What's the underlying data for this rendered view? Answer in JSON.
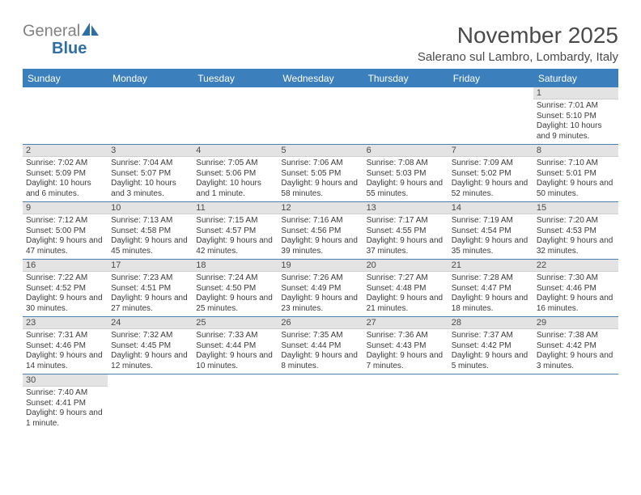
{
  "logo": {
    "part1": "General",
    "part2": "Blue"
  },
  "title": "November 2025",
  "subtitle": "Salerano sul Lambro, Lombardy, Italy",
  "colors": {
    "header_bg": "#3b7fbd",
    "header_text": "#ffffff",
    "daynum_bg": "#e3e3e3",
    "cell_border": "#4a7fb0",
    "text": "#3a3a3a",
    "logo_gray": "#808080",
    "logo_blue": "#2f6fa8"
  },
  "day_headers": [
    "Sunday",
    "Monday",
    "Tuesday",
    "Wednesday",
    "Thursday",
    "Friday",
    "Saturday"
  ],
  "leading_blanks": 6,
  "days": [
    {
      "n": 1,
      "sunrise": "7:01 AM",
      "sunset": "5:10 PM",
      "daylight": "10 hours and 9 minutes."
    },
    {
      "n": 2,
      "sunrise": "7:02 AM",
      "sunset": "5:09 PM",
      "daylight": "10 hours and 6 minutes."
    },
    {
      "n": 3,
      "sunrise": "7:04 AM",
      "sunset": "5:07 PM",
      "daylight": "10 hours and 3 minutes."
    },
    {
      "n": 4,
      "sunrise": "7:05 AM",
      "sunset": "5:06 PM",
      "daylight": "10 hours and 1 minute."
    },
    {
      "n": 5,
      "sunrise": "7:06 AM",
      "sunset": "5:05 PM",
      "daylight": "9 hours and 58 minutes."
    },
    {
      "n": 6,
      "sunrise": "7:08 AM",
      "sunset": "5:03 PM",
      "daylight": "9 hours and 55 minutes."
    },
    {
      "n": 7,
      "sunrise": "7:09 AM",
      "sunset": "5:02 PM",
      "daylight": "9 hours and 52 minutes."
    },
    {
      "n": 8,
      "sunrise": "7:10 AM",
      "sunset": "5:01 PM",
      "daylight": "9 hours and 50 minutes."
    },
    {
      "n": 9,
      "sunrise": "7:12 AM",
      "sunset": "5:00 PM",
      "daylight": "9 hours and 47 minutes."
    },
    {
      "n": 10,
      "sunrise": "7:13 AM",
      "sunset": "4:58 PM",
      "daylight": "9 hours and 45 minutes."
    },
    {
      "n": 11,
      "sunrise": "7:15 AM",
      "sunset": "4:57 PM",
      "daylight": "9 hours and 42 minutes."
    },
    {
      "n": 12,
      "sunrise": "7:16 AM",
      "sunset": "4:56 PM",
      "daylight": "9 hours and 39 minutes."
    },
    {
      "n": 13,
      "sunrise": "7:17 AM",
      "sunset": "4:55 PM",
      "daylight": "9 hours and 37 minutes."
    },
    {
      "n": 14,
      "sunrise": "7:19 AM",
      "sunset": "4:54 PM",
      "daylight": "9 hours and 35 minutes."
    },
    {
      "n": 15,
      "sunrise": "7:20 AM",
      "sunset": "4:53 PM",
      "daylight": "9 hours and 32 minutes."
    },
    {
      "n": 16,
      "sunrise": "7:22 AM",
      "sunset": "4:52 PM",
      "daylight": "9 hours and 30 minutes."
    },
    {
      "n": 17,
      "sunrise": "7:23 AM",
      "sunset": "4:51 PM",
      "daylight": "9 hours and 27 minutes."
    },
    {
      "n": 18,
      "sunrise": "7:24 AM",
      "sunset": "4:50 PM",
      "daylight": "9 hours and 25 minutes."
    },
    {
      "n": 19,
      "sunrise": "7:26 AM",
      "sunset": "4:49 PM",
      "daylight": "9 hours and 23 minutes."
    },
    {
      "n": 20,
      "sunrise": "7:27 AM",
      "sunset": "4:48 PM",
      "daylight": "9 hours and 21 minutes."
    },
    {
      "n": 21,
      "sunrise": "7:28 AM",
      "sunset": "4:47 PM",
      "daylight": "9 hours and 18 minutes."
    },
    {
      "n": 22,
      "sunrise": "7:30 AM",
      "sunset": "4:46 PM",
      "daylight": "9 hours and 16 minutes."
    },
    {
      "n": 23,
      "sunrise": "7:31 AM",
      "sunset": "4:46 PM",
      "daylight": "9 hours and 14 minutes."
    },
    {
      "n": 24,
      "sunrise": "7:32 AM",
      "sunset": "4:45 PM",
      "daylight": "9 hours and 12 minutes."
    },
    {
      "n": 25,
      "sunrise": "7:33 AM",
      "sunset": "4:44 PM",
      "daylight": "9 hours and 10 minutes."
    },
    {
      "n": 26,
      "sunrise": "7:35 AM",
      "sunset": "4:44 PM",
      "daylight": "9 hours and 8 minutes."
    },
    {
      "n": 27,
      "sunrise": "7:36 AM",
      "sunset": "4:43 PM",
      "daylight": "9 hours and 7 minutes."
    },
    {
      "n": 28,
      "sunrise": "7:37 AM",
      "sunset": "4:42 PM",
      "daylight": "9 hours and 5 minutes."
    },
    {
      "n": 29,
      "sunrise": "7:38 AM",
      "sunset": "4:42 PM",
      "daylight": "9 hours and 3 minutes."
    },
    {
      "n": 30,
      "sunrise": "7:40 AM",
      "sunset": "4:41 PM",
      "daylight": "9 hours and 1 minute."
    }
  ],
  "labels": {
    "sunrise": "Sunrise:",
    "sunset": "Sunset:",
    "daylight": "Daylight:"
  }
}
